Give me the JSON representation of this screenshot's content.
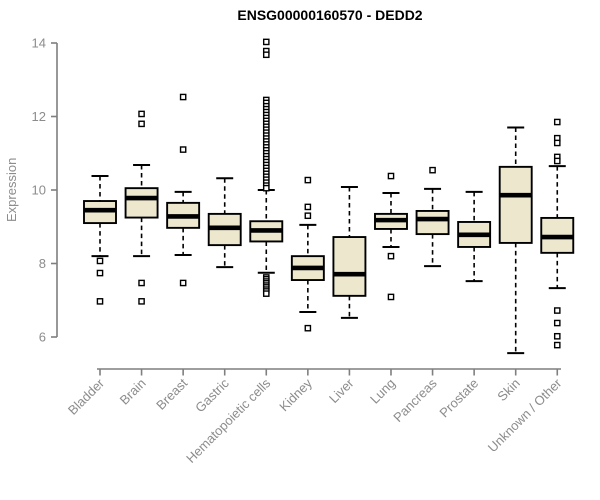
{
  "chart_data": {
    "type": "boxplot",
    "title": "ENSG00000160570 - DEDD2",
    "ylabel": "Expression",
    "xlabel": "",
    "ylim": [
      6,
      14
    ],
    "yticks": [
      6,
      8,
      10,
      12,
      14
    ],
    "grid": false,
    "legend": false,
    "categories": [
      "Bladder",
      "Brain",
      "Breast",
      "Gastric",
      "Hematopoietic cells",
      "Kidney",
      "Liver",
      "Lung",
      "Pancreas",
      "Prostate",
      "Skin",
      "Unknown / Other"
    ],
    "boxes": [
      {
        "category": "Bladder",
        "whisker_low": 8.2,
        "q1": 9.1,
        "median": 9.45,
        "q3": 9.7,
        "whisker_high": 10.38,
        "outliers": [
          8.07,
          7.74,
          6.97
        ]
      },
      {
        "category": "Brain",
        "whisker_low": 8.2,
        "q1": 9.25,
        "median": 9.78,
        "q3": 10.05,
        "whisker_high": 10.68,
        "outliers": [
          12.07,
          11.8,
          7.47,
          6.97
        ]
      },
      {
        "category": "Breast",
        "whisker_low": 8.23,
        "q1": 8.97,
        "median": 9.28,
        "q3": 9.65,
        "whisker_high": 9.95,
        "outliers": [
          12.53,
          11.1,
          7.47
        ]
      },
      {
        "category": "Gastric",
        "whisker_low": 7.9,
        "q1": 8.5,
        "median": 8.97,
        "q3": 9.35,
        "whisker_high": 10.32,
        "outliers": []
      },
      {
        "category": "Hematopoietic cells",
        "whisker_low": 7.75,
        "q1": 8.6,
        "median": 8.9,
        "q3": 9.15,
        "whisker_high": 10.0,
        "outliers": [
          14.03,
          13.78,
          13.68,
          12.45,
          12.37,
          12.28,
          12.2,
          12.12,
          12.04,
          11.96,
          11.88,
          11.8,
          11.72,
          11.64,
          11.56,
          11.48,
          11.4,
          11.32,
          11.24,
          11.16,
          11.08,
          11.0,
          10.92,
          10.84,
          10.76,
          10.68,
          10.6,
          10.52,
          10.44,
          10.36,
          10.28,
          10.2,
          10.12,
          10.05,
          7.62,
          7.57,
          7.51,
          7.46,
          7.4,
          7.35,
          7.29,
          7.24,
          7.18
        ]
      },
      {
        "category": "Kidney",
        "whisker_low": 6.68,
        "q1": 7.55,
        "median": 7.88,
        "q3": 8.2,
        "whisker_high": 9.05,
        "outliers": [
          10.27,
          9.54,
          9.3,
          6.24
        ]
      },
      {
        "category": "Liver",
        "whisker_low": 6.52,
        "q1": 7.12,
        "median": 7.71,
        "q3": 8.72,
        "whisker_high": 10.08,
        "outliers": []
      },
      {
        "category": "Lung",
        "whisker_low": 8.45,
        "q1": 8.94,
        "median": 9.18,
        "q3": 9.35,
        "whisker_high": 9.92,
        "outliers": [
          10.38,
          8.2,
          7.09
        ]
      },
      {
        "category": "Pancreas",
        "whisker_low": 7.93,
        "q1": 8.8,
        "median": 9.21,
        "q3": 9.43,
        "whisker_high": 10.03,
        "outliers": [
          10.54
        ]
      },
      {
        "category": "Prostate",
        "whisker_low": 7.52,
        "q1": 8.45,
        "median": 8.78,
        "q3": 9.13,
        "whisker_high": 9.95,
        "outliers": []
      },
      {
        "category": "Skin",
        "whisker_low": 5.56,
        "q1": 8.56,
        "median": 9.86,
        "q3": 10.63,
        "whisker_high": 11.7,
        "outliers": []
      },
      {
        "category": "Unknown / Other",
        "whisker_low": 7.33,
        "q1": 8.29,
        "median": 8.72,
        "q3": 9.24,
        "whisker_high": 10.65,
        "outliers": [
          11.85,
          11.41,
          11.28,
          10.9,
          10.79,
          6.72,
          6.38,
          6.02,
          5.78
        ]
      }
    ],
    "colors": {
      "box_fill": "#ECE7CD",
      "box_border": "#000000",
      "median": "#000000",
      "whisker": "#000000",
      "outlier_stroke": "#000000",
      "outlier_fill": "#ffffff",
      "axis": "#7f7f7f",
      "tick_label": "#8c8c8c",
      "title": "#000000",
      "background": "#ffffff"
    }
  }
}
